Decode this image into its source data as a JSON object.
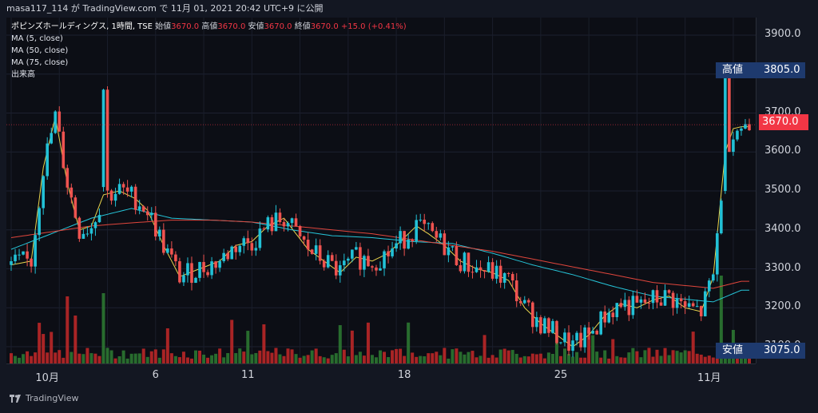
{
  "header": {
    "publish_line": "masa117_114 が TradingView.com で 11月 01, 2021 20:42 UTC+9 に公開"
  },
  "legend": {
    "symbol_line": "ポピンズホールディングス, 1時間, TSE",
    "ohlc": [
      {
        "label": "始値",
        "value": "3670.0"
      },
      {
        "label": "高値",
        "value": "3670.0"
      },
      {
        "label": "安値",
        "value": "3670.0"
      },
      {
        "label": "終値",
        "value": "3670.0"
      }
    ],
    "change": "+15.0 (+0.41%)",
    "indicators": [
      "MA (5, close)",
      "MA (50, close)",
      "MA (75, close)",
      "出来高"
    ]
  },
  "badges": {
    "high_label": "高値",
    "high_value": "3805.0",
    "low_label": "安値",
    "low_value": "3075.0",
    "last_price": "3670.0"
  },
  "footer": {
    "brand": "TradingView"
  },
  "colors": {
    "up": "#26a69a",
    "up_body": "#22c1d6",
    "down": "#ef5350",
    "ma5": "#e8d44d",
    "ma50": "#26c6da",
    "ma75": "#e0463c",
    "badge_bg": "#1e3a6e",
    "last_price_bg": "#f23645"
  },
  "chart_data": {
    "type": "candlestick",
    "y_ticks": [
      "3900.0",
      "3800.0",
      "3700.0",
      "3600.0",
      "3500.0",
      "3400.0",
      "3300.0",
      "3200.0",
      "3100.0"
    ],
    "ylim": [
      3060,
      3960
    ],
    "x_labels": [
      "10月",
      "6",
      "11",
      "18",
      "25",
      "11月"
    ],
    "x_label_positions": [
      9,
      36,
      59,
      98,
      137,
      174
    ],
    "bars": 185,
    "series": [
      {
        "name": "MA (5, close)",
        "values": [
          [
            0,
            3310
          ],
          [
            5,
            3320
          ],
          [
            8,
            3560
          ],
          [
            11,
            3690
          ],
          [
            14,
            3520
          ],
          [
            17,
            3400
          ],
          [
            20,
            3410
          ],
          [
            23,
            3490
          ],
          [
            27,
            3500
          ],
          [
            31,
            3480
          ],
          [
            34,
            3450
          ],
          [
            38,
            3360
          ],
          [
            42,
            3280
          ],
          [
            47,
            3300
          ],
          [
            52,
            3320
          ],
          [
            56,
            3360
          ],
          [
            60,
            3370
          ],
          [
            64,
            3410
          ],
          [
            68,
            3430
          ],
          [
            71,
            3390
          ],
          [
            74,
            3350
          ],
          [
            78,
            3320
          ],
          [
            82,
            3290
          ],
          [
            86,
            3330
          ],
          [
            90,
            3320
          ],
          [
            94,
            3340
          ],
          [
            98,
            3380
          ],
          [
            101,
            3410
          ],
          [
            104,
            3390
          ],
          [
            108,
            3360
          ],
          [
            112,
            3320
          ],
          [
            116,
            3300
          ],
          [
            120,
            3290
          ],
          [
            124,
            3270
          ],
          [
            128,
            3200
          ],
          [
            132,
            3160
          ],
          [
            136,
            3130
          ],
          [
            140,
            3100
          ],
          [
            144,
            3130
          ],
          [
            148,
            3180
          ],
          [
            152,
            3210
          ],
          [
            156,
            3200
          ],
          [
            160,
            3220
          ],
          [
            164,
            3230
          ],
          [
            168,
            3200
          ],
          [
            172,
            3190
          ],
          [
            175,
            3280
          ],
          [
            178,
            3600
          ],
          [
            180,
            3660
          ],
          [
            182,
            3665
          ]
        ]
      },
      {
        "name": "MA (50, close)",
        "values": [
          [
            0,
            3350
          ],
          [
            10,
            3390
          ],
          [
            20,
            3430
          ],
          [
            30,
            3455
          ],
          [
            40,
            3430
          ],
          [
            50,
            3425
          ],
          [
            60,
            3420
          ],
          [
            70,
            3400
          ],
          [
            80,
            3385
          ],
          [
            90,
            3380
          ],
          [
            100,
            3370
          ],
          [
            110,
            3365
          ],
          [
            120,
            3340
          ],
          [
            130,
            3310
          ],
          [
            140,
            3285
          ],
          [
            150,
            3255
          ],
          [
            160,
            3230
          ],
          [
            170,
            3220
          ],
          [
            175,
            3215
          ],
          [
            182,
            3245
          ]
        ]
      },
      {
        "name": "MA (75, close)",
        "values": [
          [
            0,
            3380
          ],
          [
            10,
            3395
          ],
          [
            20,
            3410
          ],
          [
            30,
            3418
          ],
          [
            40,
            3425
          ],
          [
            50,
            3425
          ],
          [
            60,
            3420
          ],
          [
            70,
            3410
          ],
          [
            80,
            3400
          ],
          [
            90,
            3390
          ],
          [
            100,
            3375
          ],
          [
            110,
            3360
          ],
          [
            120,
            3345
          ],
          [
            130,
            3325
          ],
          [
            140,
            3305
          ],
          [
            150,
            3285
          ],
          [
            160,
            3265
          ],
          [
            170,
            3255
          ],
          [
            175,
            3250
          ],
          [
            182,
            3268
          ]
        ]
      }
    ],
    "high_marker": 3805.0,
    "low_marker": 3075.0,
    "last_price": 3670.0
  }
}
